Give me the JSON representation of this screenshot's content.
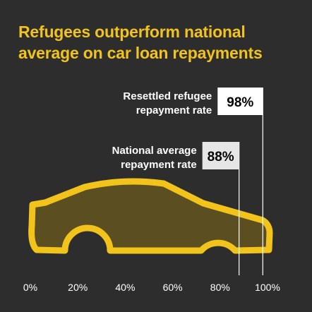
{
  "chart_data": {
    "type": "bar",
    "title": "Refugees outperform national average on car loan repayments",
    "categories": [
      "Resettled refugee repayment rate",
      "National average repayment rate"
    ],
    "category_lines": [
      [
        "Resettled refugee",
        "repayment rate"
      ],
      [
        "National average",
        "repayment rate"
      ]
    ],
    "values": [
      98,
      88
    ],
    "value_labels": [
      "98%",
      "88%"
    ],
    "xlim": [
      0,
      100
    ],
    "xticks": [
      0,
      20,
      40,
      60,
      80,
      100
    ],
    "xtick_labels": [
      "0%",
      "20%",
      "40%",
      "60%",
      "80%",
      "100%"
    ],
    "box_colors": [
      "#ffffff",
      "#e6e6e6"
    ],
    "colors": {
      "accent": "#f2c31b",
      "background": "#2d2d2d",
      "car_fill": "#5b4f22"
    },
    "icon": "car-icon"
  }
}
